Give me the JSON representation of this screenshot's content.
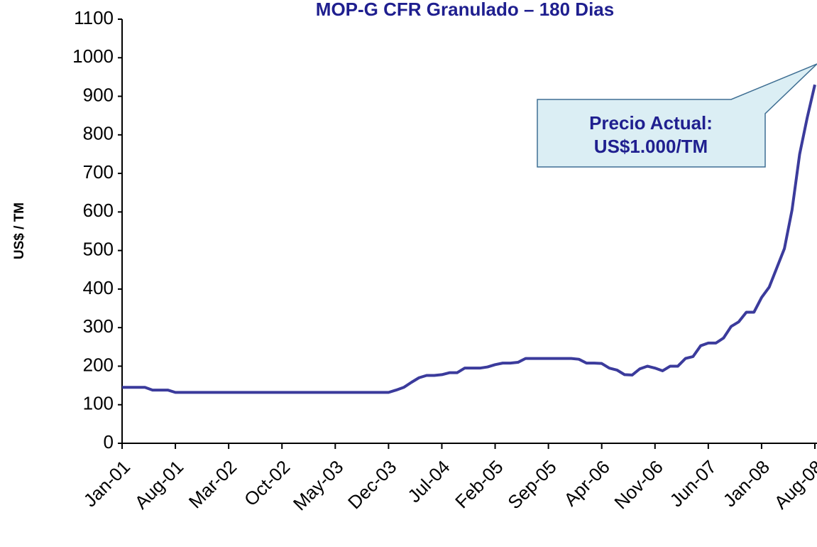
{
  "chart_data": {
    "type": "line",
    "title": "MOP-G CFR Granulado – 180 Dias",
    "y_label": "US$ / TM",
    "annotation": [
      "Precio Actual:",
      "US$1.000/TM"
    ],
    "categories": [
      "Jan-01",
      null,
      null,
      null,
      null,
      null,
      null,
      "Aug-01",
      null,
      null,
      null,
      null,
      null,
      null,
      "Mar-02",
      null,
      null,
      null,
      null,
      null,
      null,
      "Oct-02",
      null,
      null,
      null,
      null,
      null,
      null,
      "May-03",
      null,
      null,
      null,
      null,
      null,
      null,
      "Dec-03",
      null,
      null,
      null,
      null,
      null,
      null,
      "Jul-04",
      null,
      null,
      null,
      null,
      null,
      null,
      "Feb-05",
      null,
      null,
      null,
      null,
      null,
      null,
      "Sep-05",
      null,
      null,
      null,
      null,
      null,
      null,
      "Apr-06",
      null,
      null,
      null,
      null,
      null,
      null,
      "Nov-06",
      null,
      null,
      null,
      null,
      null,
      null,
      "Jun-07",
      null,
      null,
      null,
      null,
      null,
      null,
      "Jan-08",
      null,
      null,
      null,
      null,
      null,
      null,
      "Aug-08"
    ],
    "series": [
      {
        "name": "MOP-G CFR Granulado",
        "color": "#3b3b9c",
        "values": [
          145,
          145,
          145,
          145,
          138,
          138,
          138,
          132,
          132,
          132,
          132,
          132,
          132,
          132,
          132,
          132,
          132,
          132,
          132,
          132,
          132,
          132,
          132,
          132,
          132,
          132,
          132,
          132,
          132,
          132,
          132,
          132,
          132,
          132,
          132,
          132,
          138,
          145,
          158,
          170,
          176,
          176,
          178,
          183,
          183,
          195,
          195,
          195,
          198,
          204,
          208,
          208,
          210,
          220,
          220,
          220,
          220,
          220,
          220,
          220,
          218,
          208,
          208,
          207,
          195,
          190,
          178,
          177,
          193,
          200,
          195,
          188,
          200,
          200,
          220,
          225,
          253,
          260,
          260,
          273,
          303,
          315,
          340,
          340,
          378,
          405,
          455,
          505,
          605,
          750,
          845,
          930
        ]
      }
    ],
    "ylim": [
      0,
      1100
    ],
    "yticks": [
      0,
      100,
      200,
      300,
      400,
      500,
      600,
      700,
      800,
      900,
      1000,
      1100
    ]
  }
}
